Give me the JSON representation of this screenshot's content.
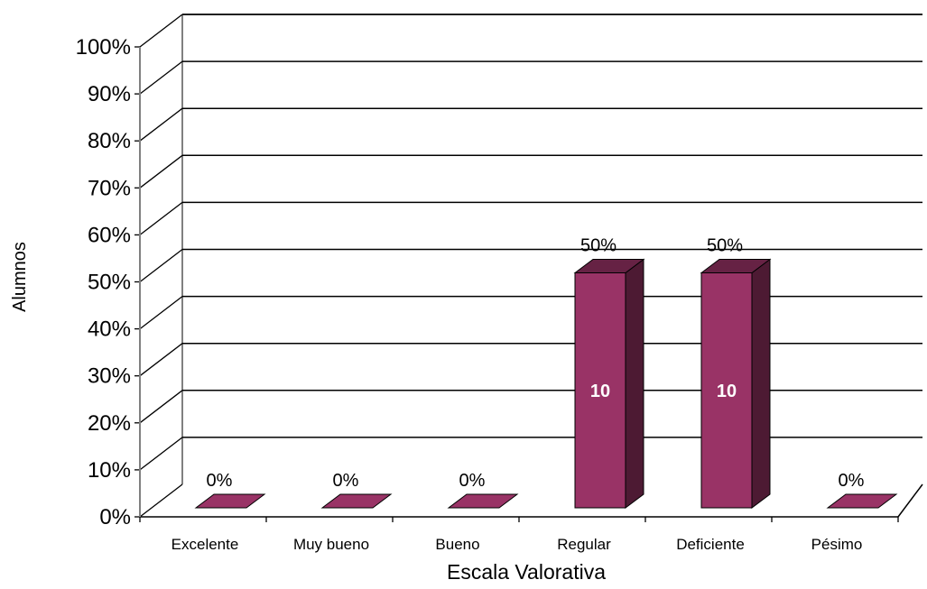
{
  "chart_data": {
    "type": "bar",
    "categories": [
      "Excelente",
      "Muy bueno",
      "Bueno",
      "Regular",
      "Deficiente",
      "Pésimo"
    ],
    "values": [
      0,
      0,
      0,
      50,
      50,
      0
    ],
    "value_labels": [
      "0%",
      "0%",
      "0%",
      "50%",
      "50%",
      "0%"
    ],
    "count_labels": [
      "",
      "",
      "",
      "10",
      "10",
      ""
    ],
    "y_ticks": [
      "0%",
      "10%",
      "20%",
      "30%",
      "40%",
      "50%",
      "60%",
      "70%",
      "80%",
      "90%",
      "100%"
    ],
    "ylim": [
      0,
      100
    ],
    "xlabel": "Escala Valorativa",
    "ylabel": "Alumnos",
    "grid": true,
    "legend": "none",
    "colors": {
      "bar_front": "#993366",
      "bar_side": "#4d1a33",
      "bar_top": "#662244"
    }
  }
}
